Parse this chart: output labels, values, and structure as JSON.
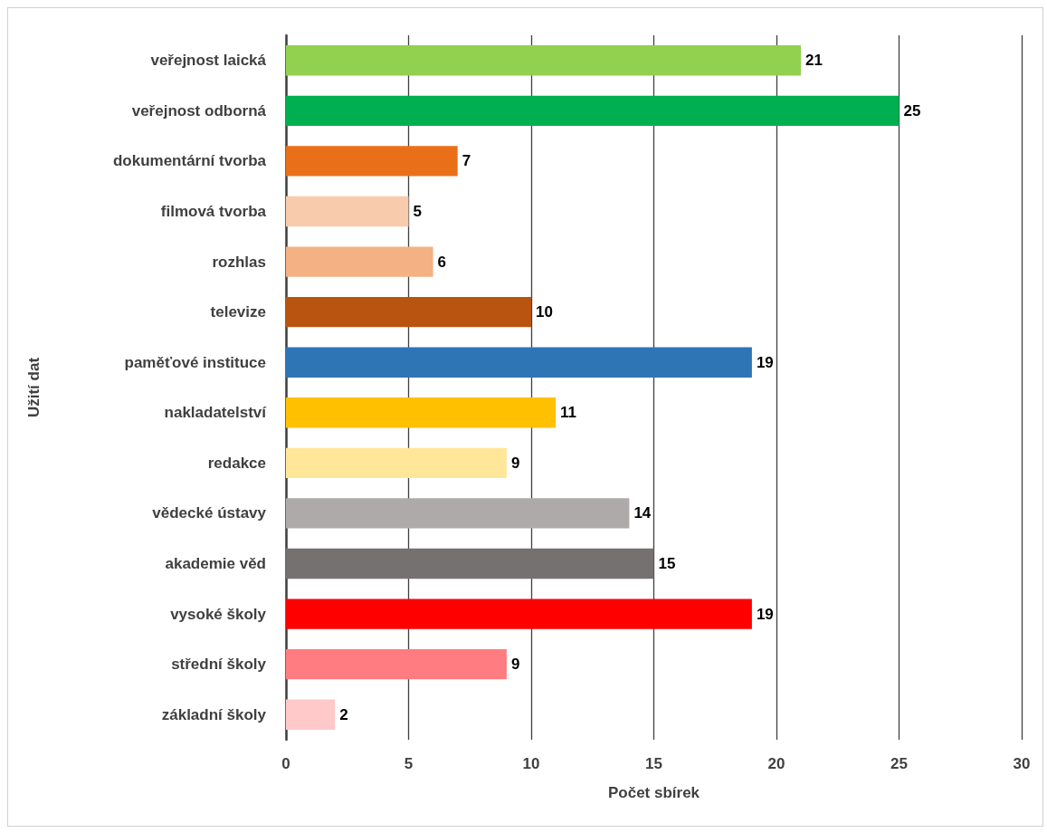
{
  "chart_data": {
    "type": "bar",
    "orientation": "horizontal",
    "xlabel": "Počet sbírek",
    "ylabel": "Užití dat",
    "categories": [
      "veřejnost laická",
      "veřejnost odborná",
      "dokumentární tvorba",
      "filmová tvorba",
      "rozhlas",
      "televize",
      "paměťové instituce",
      "nakladatelství",
      "redakce",
      "vědecké ústavy",
      "akademie věd",
      "vysoké školy",
      "střední školy",
      "základní školy"
    ],
    "values": [
      21,
      25,
      7,
      5,
      6,
      10,
      19,
      11,
      9,
      14,
      15,
      19,
      9,
      2
    ],
    "colors": [
      "#92d050",
      "#00b050",
      "#e97018",
      "#f8cbad",
      "#f4b183",
      "#b85410",
      "#2e75b6",
      "#ffc000",
      "#ffe699",
      "#aeaaaa",
      "#767171",
      "#ff0000",
      "#ff7c80",
      "#ffc9c9"
    ],
    "xlim": [
      0,
      30
    ],
    "xticks": [
      0,
      5,
      10,
      15,
      20,
      25,
      30
    ],
    "grid": "x",
    "data_labels": true
  }
}
